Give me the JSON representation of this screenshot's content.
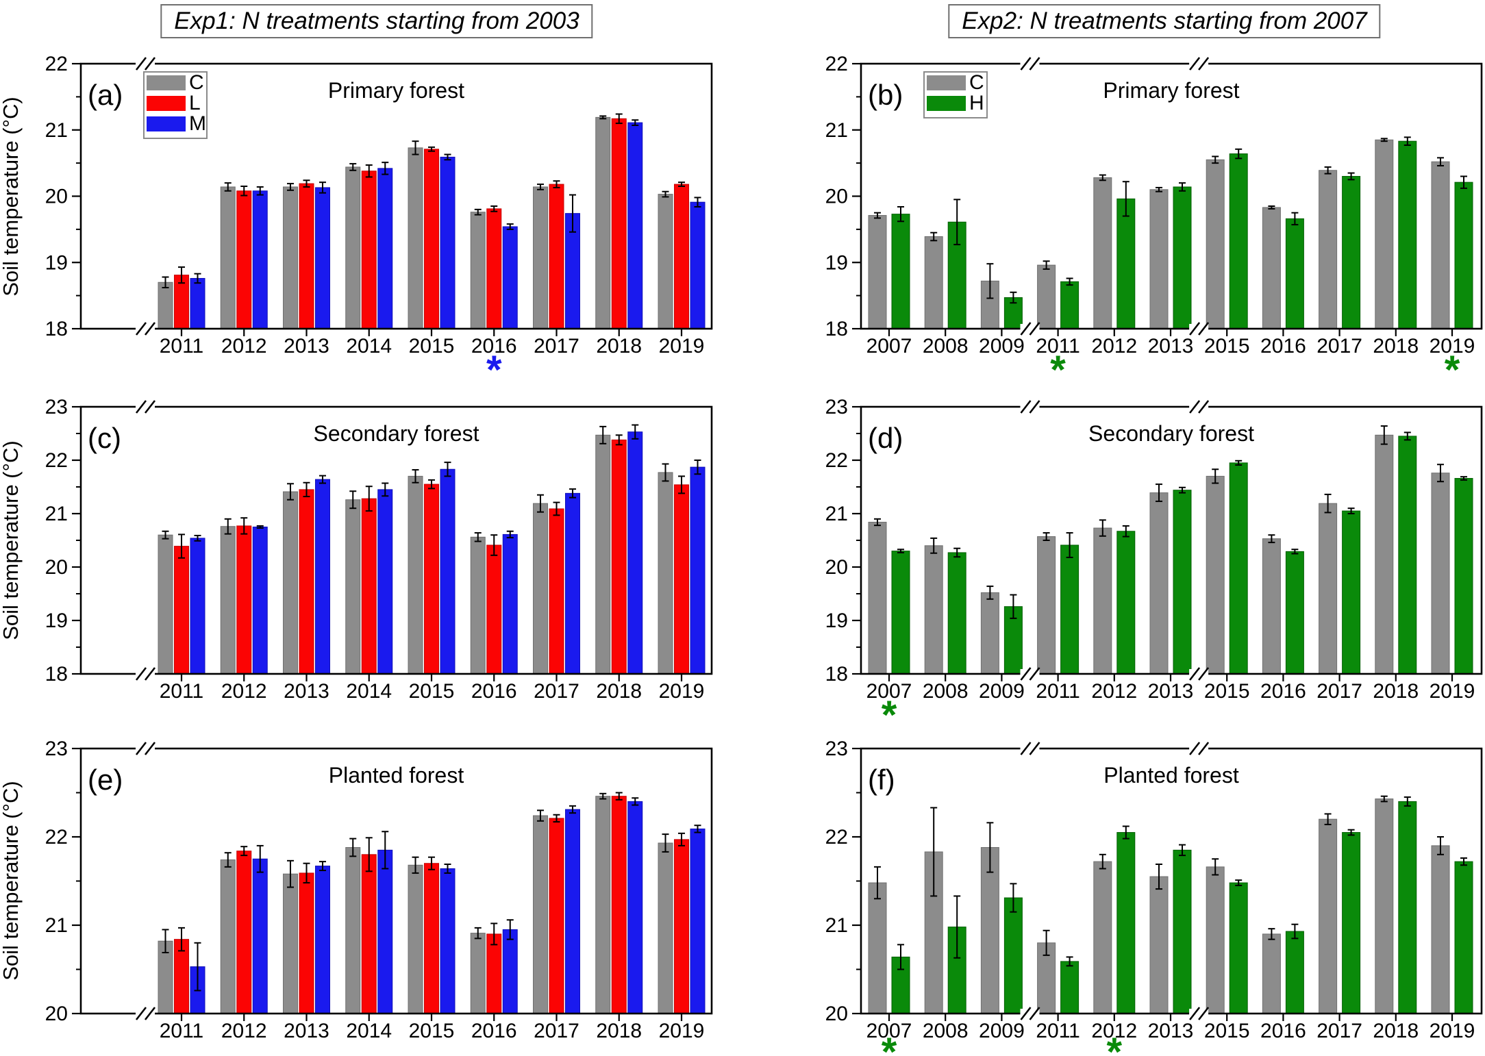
{
  "figure": {
    "left_title": "Exp1: N treatments starting from 2003",
    "right_title": "Exp2:  N treatments starting from 2007",
    "ylabel": "Soil temperature (°C)"
  },
  "colors": {
    "C": "#8c8c8c",
    "L": "#fb0404",
    "M": "#1a1aee",
    "H": "#0a8a0a"
  },
  "chart_data": [
    {
      "id": "a",
      "panel_label": "(a)",
      "title": "Primary forest",
      "type": "bar",
      "ylim": [
        18,
        22
      ],
      "yticks": [
        18,
        19,
        20,
        21,
        22
      ],
      "minor_step": 0.5,
      "categories": [
        "2011",
        "2012",
        "2013",
        "2014",
        "2015",
        "2016",
        "2017",
        "2018",
        "2019"
      ],
      "series": [
        {
          "name": "C",
          "values": [
            18.7,
            20.14,
            20.14,
            20.44,
            20.73,
            19.76,
            20.14,
            21.19,
            20.03
          ],
          "errors": [
            0.08,
            0.06,
            0.05,
            0.05,
            0.1,
            0.04,
            0.04,
            0.02,
            0.04
          ]
        },
        {
          "name": "L",
          "values": [
            18.81,
            20.08,
            20.19,
            20.38,
            20.71,
            19.81,
            20.18,
            21.17,
            20.18
          ],
          "errors": [
            0.12,
            0.07,
            0.05,
            0.09,
            0.03,
            0.04,
            0.05,
            0.07,
            0.03
          ]
        },
        {
          "name": "M",
          "values": [
            18.76,
            20.08,
            20.13,
            20.42,
            20.59,
            19.54,
            19.74,
            21.11,
            19.91
          ],
          "errors": [
            0.07,
            0.06,
            0.08,
            0.09,
            0.04,
            0.04,
            0.28,
            0.04,
            0.07
          ]
        }
      ],
      "asterisks": [
        {
          "category": "2016",
          "color": "#1a1aee"
        }
      ],
      "legend": [
        "C",
        "L",
        "M"
      ]
    },
    {
      "id": "b",
      "panel_label": "(b)",
      "title": "Primary forest",
      "type": "bar",
      "ylim": [
        18,
        22
      ],
      "yticks": [
        18,
        19,
        20,
        21,
        22
      ],
      "minor_step": 0.5,
      "categories": [
        "2007",
        "2008",
        "2009",
        "2011",
        "2012",
        "2013",
        "2015",
        "2016",
        "2017",
        "2018",
        "2019"
      ],
      "series": [
        {
          "name": "C",
          "values": [
            19.71,
            19.39,
            18.72,
            18.96,
            20.28,
            20.1,
            20.55,
            19.83,
            20.39,
            20.85,
            20.52
          ],
          "errors": [
            0.04,
            0.06,
            0.26,
            0.06,
            0.04,
            0.03,
            0.05,
            0.02,
            0.05,
            0.02,
            0.06
          ]
        },
        {
          "name": "H",
          "values": [
            19.73,
            19.61,
            18.47,
            18.71,
            19.96,
            20.14,
            20.64,
            19.66,
            20.3,
            20.83,
            20.21
          ],
          "errors": [
            0.11,
            0.34,
            0.08,
            0.05,
            0.26,
            0.06,
            0.07,
            0.09,
            0.05,
            0.06,
            0.09
          ]
        }
      ],
      "asterisks": [
        {
          "category": "2011",
          "color": "#0a8a0a"
        },
        {
          "category": "2019",
          "color": "#0a8a0a"
        }
      ],
      "legend": [
        "C",
        "H"
      ]
    },
    {
      "id": "c",
      "panel_label": "(c)",
      "title": "Secondary forest",
      "type": "bar",
      "ylim": [
        18,
        23
      ],
      "yticks": [
        18,
        19,
        20,
        21,
        22,
        23
      ],
      "minor_step": 0.5,
      "categories": [
        "2011",
        "2012",
        "2013",
        "2014",
        "2015",
        "2016",
        "2017",
        "2018",
        "2019"
      ],
      "series": [
        {
          "name": "C",
          "values": [
            20.6,
            20.76,
            21.41,
            21.26,
            21.7,
            20.56,
            21.19,
            22.47,
            21.77
          ],
          "errors": [
            0.07,
            0.14,
            0.15,
            0.16,
            0.12,
            0.08,
            0.16,
            0.16,
            0.16
          ]
        },
        {
          "name": "L",
          "values": [
            20.39,
            20.77,
            21.45,
            21.28,
            21.55,
            20.41,
            21.09,
            22.38,
            21.54
          ],
          "errors": [
            0.22,
            0.15,
            0.13,
            0.23,
            0.08,
            0.19,
            0.12,
            0.09,
            0.16
          ]
        },
        {
          "name": "M",
          "values": [
            20.54,
            20.75,
            21.64,
            21.45,
            21.83,
            20.61,
            21.38,
            22.53,
            21.87
          ],
          "errors": [
            0.05,
            0.02,
            0.07,
            0.12,
            0.13,
            0.06,
            0.08,
            0.13,
            0.13
          ]
        }
      ],
      "asterisks": [],
      "legend": null
    },
    {
      "id": "d",
      "panel_label": "(d)",
      "title": "Secondary forest",
      "type": "bar",
      "ylim": [
        18,
        23
      ],
      "yticks": [
        18,
        19,
        20,
        21,
        22,
        23
      ],
      "minor_step": 0.5,
      "categories": [
        "2007",
        "2008",
        "2009",
        "2011",
        "2012",
        "2013",
        "2015",
        "2016",
        "2017",
        "2018",
        "2019"
      ],
      "series": [
        {
          "name": "C",
          "values": [
            20.84,
            20.4,
            19.52,
            20.57,
            20.73,
            21.39,
            21.7,
            20.53,
            21.19,
            22.47,
            21.76
          ],
          "errors": [
            0.06,
            0.14,
            0.12,
            0.07,
            0.15,
            0.16,
            0.13,
            0.07,
            0.17,
            0.17,
            0.16
          ]
        },
        {
          "name": "H",
          "values": [
            20.3,
            20.27,
            19.26,
            20.41,
            20.67,
            21.44,
            21.95,
            20.29,
            21.05,
            22.45,
            21.66
          ],
          "errors": [
            0.03,
            0.08,
            0.22,
            0.23,
            0.1,
            0.05,
            0.04,
            0.04,
            0.05,
            0.07,
            0.03
          ]
        }
      ],
      "asterisks": [
        {
          "category": "2007",
          "color": "#0a8a0a"
        }
      ],
      "legend": null
    },
    {
      "id": "e",
      "panel_label": "(e)",
      "title": "Planted forest",
      "type": "bar",
      "ylim": [
        20,
        23
      ],
      "yticks": [
        20,
        21,
        22,
        23
      ],
      "minor_step": 0.5,
      "categories": [
        "2011",
        "2012",
        "2013",
        "2014",
        "2015",
        "2016",
        "2017",
        "2018",
        "2019"
      ],
      "series": [
        {
          "name": "C",
          "values": [
            20.82,
            21.74,
            21.58,
            21.88,
            21.68,
            20.91,
            22.24,
            22.46,
            21.93
          ],
          "errors": [
            0.13,
            0.08,
            0.15,
            0.1,
            0.09,
            0.06,
            0.06,
            0.03,
            0.1
          ]
        },
        {
          "name": "L",
          "values": [
            20.84,
            21.84,
            21.59,
            21.8,
            21.7,
            20.9,
            22.21,
            22.46,
            21.97
          ],
          "errors": [
            0.13,
            0.05,
            0.11,
            0.19,
            0.07,
            0.12,
            0.04,
            0.04,
            0.07
          ]
        },
        {
          "name": "M",
          "values": [
            20.53,
            21.75,
            21.67,
            21.85,
            21.64,
            20.95,
            22.31,
            22.4,
            22.09
          ],
          "errors": [
            0.27,
            0.15,
            0.05,
            0.21,
            0.05,
            0.11,
            0.04,
            0.04,
            0.04
          ]
        }
      ],
      "asterisks": [],
      "legend": null
    },
    {
      "id": "f",
      "panel_label": "(f)",
      "title": "Planted forest",
      "type": "bar",
      "ylim": [
        20,
        23
      ],
      "yticks": [
        20,
        21,
        22,
        23
      ],
      "minor_step": 0.5,
      "categories": [
        "2007",
        "2008",
        "2009",
        "2011",
        "2012",
        "2013",
        "2015",
        "2016",
        "2017",
        "2018",
        "2019"
      ],
      "series": [
        {
          "name": "C",
          "values": [
            21.48,
            21.83,
            21.88,
            20.8,
            21.72,
            21.55,
            21.66,
            20.9,
            22.2,
            22.43,
            21.9
          ],
          "errors": [
            0.18,
            0.5,
            0.28,
            0.14,
            0.08,
            0.14,
            0.09,
            0.06,
            0.06,
            0.03,
            0.1
          ]
        },
        {
          "name": "H",
          "values": [
            20.64,
            20.98,
            21.31,
            20.59,
            22.05,
            21.85,
            21.48,
            20.93,
            22.05,
            22.4,
            21.72
          ],
          "errors": [
            0.14,
            0.35,
            0.16,
            0.05,
            0.07,
            0.06,
            0.03,
            0.08,
            0.03,
            0.05,
            0.04
          ]
        }
      ],
      "asterisks": [
        {
          "category": "2007",
          "color": "#0a8a0a"
        },
        {
          "category": "2012",
          "color": "#0a8a0a"
        }
      ],
      "legend": null
    }
  ]
}
